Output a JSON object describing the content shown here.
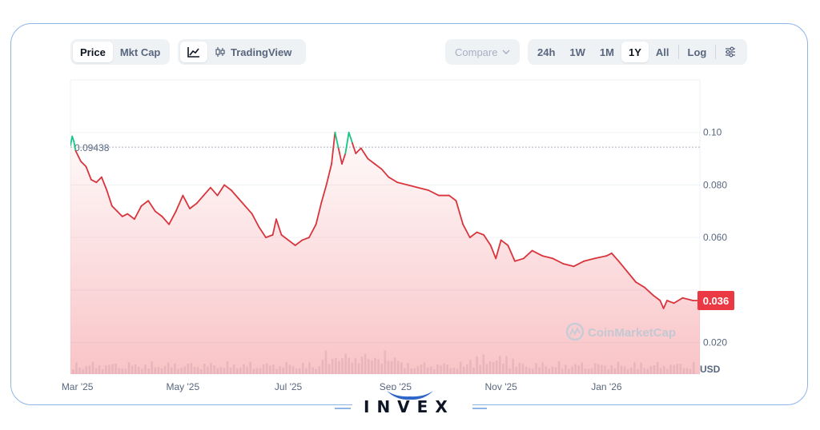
{
  "toolbar": {
    "price_label": "Price",
    "mktcap_label": "Mkt Cap",
    "tradingview_label": "TradingView",
    "compare_label": "Compare",
    "ranges": [
      "24h",
      "1W",
      "1M",
      "1Y",
      "All"
    ],
    "active_range": "1Y",
    "log_label": "Log"
  },
  "watermark": "CoinMarketCap",
  "brand": {
    "logo_text": "INVEX"
  },
  "colors": {
    "down_line": "#d9343c",
    "up_line": "#16c784",
    "price_badge_bg": "#ea3943",
    "frame_border": "#8fb4e6",
    "fill_top": "#ea3943"
  },
  "chart_data": {
    "type": "line",
    "currency": "USD",
    "ylim": [
      0.008,
      0.12
    ],
    "yticks": [
      "0.020",
      "0.040",
      "0.060",
      "0.080",
      "0.10"
    ],
    "y_tick_values": [
      0.02,
      0.04,
      0.06,
      0.08,
      0.1
    ],
    "ytick_labels": [
      "0.020",
      "",
      "0.060",
      "0.080",
      "0.10"
    ],
    "y_unit_label": "USD",
    "xlim": [
      "2025-02-25",
      "2026-02-24"
    ],
    "xticks": [
      {
        "date": "2025-03-01",
        "label": "Mar '25"
      },
      {
        "date": "2025-05-01",
        "label": "May '25"
      },
      {
        "date": "2025-07-01",
        "label": "Jul '25"
      },
      {
        "date": "2025-09-01",
        "label": "Sep '25"
      },
      {
        "date": "2025-11-01",
        "label": "Nov '25"
      },
      {
        "date": "2026-01-01",
        "label": "Jan '26"
      }
    ],
    "reference_price": 0.09438,
    "reference_label": "0.09438",
    "current_price": 0.036,
    "current_label": "0.036",
    "grid": true,
    "series": [
      {
        "points": [
          [
            "2025-02-25",
            0.095
          ],
          [
            "2025-02-26",
            0.0985
          ],
          [
            "2025-02-27",
            0.0965
          ],
          [
            "2025-02-28",
            0.093
          ],
          [
            "2025-03-03",
            0.089
          ],
          [
            "2025-03-06",
            0.087
          ],
          [
            "2025-03-09",
            0.082
          ],
          [
            "2025-03-12",
            0.081
          ],
          [
            "2025-03-15",
            0.083
          ],
          [
            "2025-03-18",
            0.078
          ],
          [
            "2025-03-21",
            0.072
          ],
          [
            "2025-03-24",
            0.07
          ],
          [
            "2025-03-27",
            0.068
          ],
          [
            "2025-03-30",
            0.069
          ],
          [
            "2025-04-03",
            0.067
          ],
          [
            "2025-04-07",
            0.072
          ],
          [
            "2025-04-11",
            0.074
          ],
          [
            "2025-04-15",
            0.07
          ],
          [
            "2025-04-19",
            0.068
          ],
          [
            "2025-04-23",
            0.065
          ],
          [
            "2025-04-27",
            0.07
          ],
          [
            "2025-05-01",
            0.076
          ],
          [
            "2025-05-05",
            0.071
          ],
          [
            "2025-05-09",
            0.073
          ],
          [
            "2025-05-13",
            0.076
          ],
          [
            "2025-05-17",
            0.079
          ],
          [
            "2025-05-21",
            0.076
          ],
          [
            "2025-05-25",
            0.08
          ],
          [
            "2025-05-29",
            0.078
          ],
          [
            "2025-06-02",
            0.075
          ],
          [
            "2025-06-06",
            0.072
          ],
          [
            "2025-06-10",
            0.069
          ],
          [
            "2025-06-14",
            0.064
          ],
          [
            "2025-06-18",
            0.06
          ],
          [
            "2025-06-22",
            0.061
          ],
          [
            "2025-06-24",
            0.067
          ],
          [
            "2025-06-27",
            0.061
          ],
          [
            "2025-07-01",
            0.059
          ],
          [
            "2025-07-05",
            0.057
          ],
          [
            "2025-07-09",
            0.059
          ],
          [
            "2025-07-13",
            0.06
          ],
          [
            "2025-07-17",
            0.065
          ],
          [
            "2025-07-20",
            0.073
          ],
          [
            "2025-07-23",
            0.08
          ],
          [
            "2025-07-26",
            0.088
          ],
          [
            "2025-07-28",
            0.1
          ],
          [
            "2025-07-30",
            0.094
          ],
          [
            "2025-08-01",
            0.088
          ],
          [
            "2025-08-03",
            0.092
          ],
          [
            "2025-08-05",
            0.1
          ],
          [
            "2025-08-07",
            0.096
          ],
          [
            "2025-08-09",
            0.092
          ],
          [
            "2025-08-12",
            0.094
          ],
          [
            "2025-08-16",
            0.09
          ],
          [
            "2025-08-20",
            0.088
          ],
          [
            "2025-08-24",
            0.086
          ],
          [
            "2025-08-28",
            0.083
          ],
          [
            "2025-09-02",
            0.081
          ],
          [
            "2025-09-08",
            0.08
          ],
          [
            "2025-09-14",
            0.079
          ],
          [
            "2025-09-20",
            0.078
          ],
          [
            "2025-09-26",
            0.076
          ],
          [
            "2025-10-02",
            0.076
          ],
          [
            "2025-10-06",
            0.074
          ],
          [
            "2025-10-10",
            0.065
          ],
          [
            "2025-10-14",
            0.06
          ],
          [
            "2025-10-18",
            0.062
          ],
          [
            "2025-10-22",
            0.061
          ],
          [
            "2025-10-26",
            0.057
          ],
          [
            "2025-10-29",
            0.052
          ],
          [
            "2025-11-01",
            0.059
          ],
          [
            "2025-11-05",
            0.057
          ],
          [
            "2025-11-09",
            0.051
          ],
          [
            "2025-11-14",
            0.052
          ],
          [
            "2025-11-19",
            0.055
          ],
          [
            "2025-11-25",
            0.053
          ],
          [
            "2025-12-01",
            0.052
          ],
          [
            "2025-12-07",
            0.05
          ],
          [
            "2025-12-13",
            0.049
          ],
          [
            "2025-12-19",
            0.051
          ],
          [
            "2025-12-25",
            0.052
          ],
          [
            "2026-01-01",
            0.053
          ],
          [
            "2026-01-04",
            0.054
          ],
          [
            "2026-01-08",
            0.051
          ],
          [
            "2026-01-13",
            0.047
          ],
          [
            "2026-01-18",
            0.043
          ],
          [
            "2026-01-23",
            0.041
          ],
          [
            "2026-01-28",
            0.038
          ],
          [
            "2026-02-01",
            0.036
          ],
          [
            "2026-02-03",
            0.033
          ],
          [
            "2026-02-05",
            0.036
          ],
          [
            "2026-02-09",
            0.035
          ],
          [
            "2026-02-14",
            0.037
          ],
          [
            "2026-02-20",
            0.036
          ],
          [
            "2026-02-24",
            0.036
          ]
        ]
      }
    ]
  }
}
